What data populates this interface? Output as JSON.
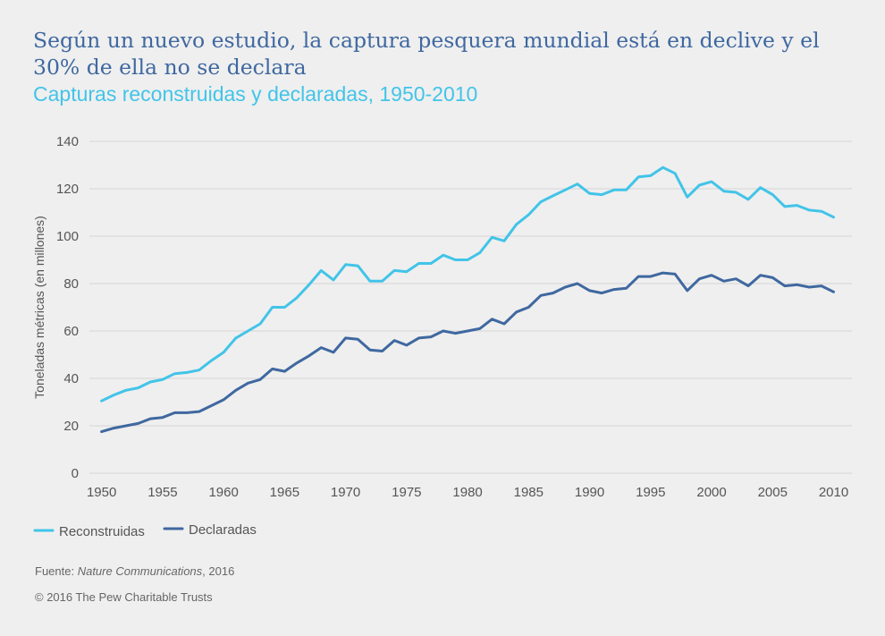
{
  "header": {
    "title": "Según un nuevo estudio, la captura pesquera mundial está en declive y el 30% de ella no se declara",
    "subtitle": "Capturas reconstruidas y declaradas, 1950-2010"
  },
  "footer": {
    "source_prefix": "Fuente: ",
    "source_journal": "Nature Communications",
    "source_suffix": ", 2016",
    "copyright": "© 2016 The Pew Charitable Trusts"
  },
  "colors": {
    "reconstruidas": "#42c4e8",
    "declaradas": "#3f68a0",
    "grid": "#d6d6d6"
  },
  "chart_data": {
    "type": "line",
    "title": "Capturas reconstruidas y declaradas, 1950-2010",
    "xlabel": "",
    "ylabel": "Toneladas métricas (en millones)",
    "xlim": [
      1949,
      2011.5
    ],
    "ylim": [
      0,
      140
    ],
    "grid": true,
    "legend_position": "bottom-left",
    "x_ticks": [
      1950,
      1955,
      1960,
      1965,
      1970,
      1975,
      1980,
      1985,
      1990,
      1995,
      2000,
      2005,
      2010
    ],
    "y_ticks": [
      0,
      20,
      40,
      60,
      80,
      100,
      120,
      140
    ],
    "x": [
      1950,
      1951,
      1952,
      1953,
      1954,
      1955,
      1956,
      1957,
      1958,
      1959,
      1960,
      1961,
      1962,
      1963,
      1964,
      1965,
      1966,
      1967,
      1968,
      1969,
      1970,
      1971,
      1972,
      1973,
      1974,
      1975,
      1976,
      1977,
      1978,
      1979,
      1980,
      1981,
      1982,
      1983,
      1984,
      1985,
      1986,
      1987,
      1988,
      1989,
      1990,
      1991,
      1992,
      1993,
      1994,
      1995,
      1996,
      1997,
      1998,
      1999,
      2000,
      2001,
      2002,
      2003,
      2004,
      2005,
      2006,
      2007,
      2008,
      2009,
      2010
    ],
    "series": [
      {
        "name": "Reconstruidas",
        "key": "reconstruidas",
        "values": [
          30.5,
          33,
          35,
          36,
          38.5,
          39.5,
          42,
          42.5,
          43.5,
          47.5,
          51,
          57,
          60,
          63,
          70,
          70,
          74,
          79.5,
          85.5,
          81.5,
          88,
          87.5,
          81,
          81,
          85.5,
          85,
          88.5,
          88.5,
          92,
          90,
          90,
          93,
          99.5,
          98,
          105,
          109,
          114.5,
          117,
          119.5,
          122,
          118,
          117.5,
          119.5,
          119.5,
          125,
          125.5,
          129,
          126.5,
          116.5,
          121.5,
          123,
          119,
          118.5,
          115.5,
          120.5,
          117.5,
          112.5,
          113,
          111,
          110.5,
          108
        ]
      },
      {
        "name": "Declaradas",
        "key": "declaradas",
        "values": [
          17.5,
          19,
          20,
          21,
          23,
          23.5,
          25.5,
          25.5,
          26,
          28.5,
          31,
          35,
          38,
          39.5,
          44,
          43,
          46.5,
          49.5,
          53,
          51,
          57,
          56.5,
          52,
          51.5,
          56,
          54,
          57,
          57.5,
          60,
          59,
          60,
          61,
          65,
          63,
          68,
          70,
          75,
          76,
          78.5,
          80,
          77,
          76,
          77.5,
          78,
          83,
          83,
          84.5,
          84,
          77,
          82,
          83.5,
          81,
          82,
          79,
          83.5,
          82.5,
          79,
          79.5,
          78.5,
          79,
          76.5
        ]
      }
    ]
  }
}
